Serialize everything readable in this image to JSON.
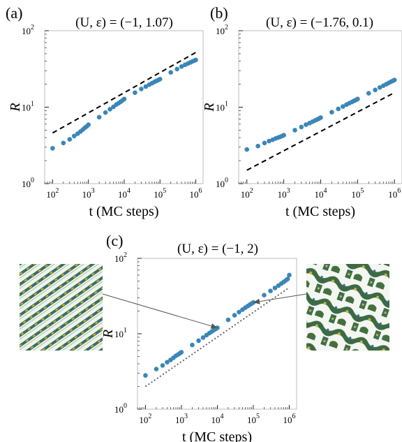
{
  "colors": {
    "points": "#3a86b8",
    "frame": "#bdbdbd",
    "guide": "#000000",
    "guide_dotted": "#666666",
    "arrow": "#555555"
  },
  "chart_data": [
    {
      "id": "a",
      "panel_label": "(a)",
      "type": "scatter",
      "title": "(U, ε) = (−1, 1.07)",
      "xlabel": "t (MC steps)",
      "ylabel": "R",
      "xscale": "log",
      "yscale": "log",
      "xlim": [
        60,
        1600000
      ],
      "ylim": [
        1,
        100
      ],
      "xticks": [
        "10^2",
        "10^3",
        "10^4",
        "10^5",
        "10^6"
      ],
      "yticks": [
        "10^0",
        "10^1",
        "10^2"
      ],
      "grid": false,
      "series": [
        {
          "values_x": [
            100,
            200,
            300,
            400,
            500,
            600,
            700,
            800,
            900,
            1000,
            2000,
            3000,
            4000,
            5000,
            6000,
            7000,
            8000,
            9000,
            10000,
            20000,
            30000,
            40000,
            50000,
            60000,
            70000,
            80000,
            90000,
            100000,
            200000,
            300000,
            400000,
            500000,
            600000,
            700000,
            800000,
            900000,
            1000000
          ],
          "values_y": [
            2.9,
            3.4,
            3.8,
            4.2,
            4.5,
            4.8,
            5.1,
            5.4,
            5.6,
            5.9,
            7.4,
            8.5,
            9.4,
            10.1,
            10.8,
            11.3,
            11.8,
            12.3,
            12.8,
            15.5,
            17.3,
            18.6,
            19.7,
            20.6,
            21.4,
            22.1,
            22.7,
            23.3,
            28.5,
            31.5,
            34.0,
            35.8,
            37.2,
            38.5,
            39.6,
            40.6,
            41.5
          ]
        }
      ],
      "guide_line": {
        "style": "dashed",
        "x": [
          100,
          1000000
        ],
        "y": [
          4.6,
          52
        ]
      }
    },
    {
      "id": "b",
      "panel_label": "(b)",
      "type": "scatter",
      "title": "(U, ε) = (−1.76, 0.1)",
      "xlabel": "t (MC steps)",
      "ylabel": "R",
      "xscale": "log",
      "yscale": "log",
      "xlim": [
        60,
        1600000
      ],
      "ylim": [
        1,
        100
      ],
      "xticks": [
        "10^2",
        "10^3",
        "10^4",
        "10^5",
        "10^6"
      ],
      "yticks": [
        "10^0",
        "10^1",
        "10^2"
      ],
      "grid": false,
      "series": [
        {
          "values_x": [
            100,
            200,
            300,
            400,
            500,
            600,
            700,
            800,
            900,
            1000,
            2000,
            3000,
            4000,
            5000,
            6000,
            7000,
            8000,
            9000,
            10000,
            20000,
            30000,
            40000,
            50000,
            60000,
            70000,
            80000,
            90000,
            100000,
            200000,
            300000,
            400000,
            500000,
            600000,
            700000,
            800000,
            900000,
            1000000
          ],
          "values_y": [
            2.8,
            3.1,
            3.4,
            3.6,
            3.75,
            3.9,
            4.0,
            4.1,
            4.2,
            4.3,
            5.0,
            5.5,
            5.9,
            6.2,
            6.45,
            6.7,
            6.9,
            7.1,
            7.3,
            8.6,
            9.5,
            10.2,
            10.8,
            11.3,
            11.7,
            12.1,
            12.4,
            12.8,
            15.2,
            16.8,
            18.1,
            19.1,
            20.0,
            20.8,
            21.5,
            22.1,
            22.7
          ]
        }
      ],
      "guide_line": {
        "style": "dashed",
        "x": [
          100,
          1000000
        ],
        "y": [
          1.5,
          15.5
        ]
      }
    },
    {
      "id": "c",
      "panel_label": "(c)",
      "type": "scatter",
      "title": "(U, ε) = (−1, 2)",
      "xlabel": "t (MC steps)",
      "ylabel": "R",
      "xscale": "log",
      "yscale": "log",
      "xlim": [
        60,
        1600000
      ],
      "ylim": [
        1,
        100
      ],
      "xticks": [
        "10^2",
        "10^3",
        "10^4",
        "10^5",
        "10^6"
      ],
      "yticks": [
        "10^0",
        "10^1",
        "10^2"
      ],
      "grid": false,
      "series": [
        {
          "values_x": [
            100,
            200,
            300,
            400,
            500,
            600,
            700,
            800,
            900,
            1000,
            2000,
            3000,
            4000,
            5000,
            6000,
            7000,
            8000,
            9000,
            10000,
            20000,
            30000,
            40000,
            50000,
            60000,
            70000,
            80000,
            90000,
            100000,
            200000,
            300000,
            400000,
            500000,
            600000,
            700000,
            800000,
            900000,
            1000000
          ],
          "values_y": [
            2.8,
            3.4,
            3.8,
            4.2,
            4.5,
            4.8,
            5.1,
            5.3,
            5.5,
            5.7,
            7.1,
            8.1,
            8.9,
            9.6,
            10.2,
            10.7,
            11.2,
            11.6,
            12.0,
            15.3,
            17.6,
            19.4,
            20.9,
            22.2,
            23.3,
            24.3,
            25.2,
            26.0,
            32.5,
            37.0,
            40.5,
            43.5,
            46.2,
            48.7,
            51.0,
            53.2,
            60.0
          ]
        }
      ],
      "guide_line": {
        "style": "dotted",
        "x": [
          100,
          1000000
        ],
        "y": [
          2.0,
          41
        ]
      }
    }
  ],
  "snapshots": [
    {
      "name": "snapshot-early",
      "pattern": "fine-stripes",
      "points_to": {
        "x": 10000,
        "y": 12.0
      }
    },
    {
      "name": "snapshot-late",
      "pattern": "coarse-labyrinth",
      "points_to": {
        "x": 100000,
        "y": 26.0
      }
    }
  ]
}
